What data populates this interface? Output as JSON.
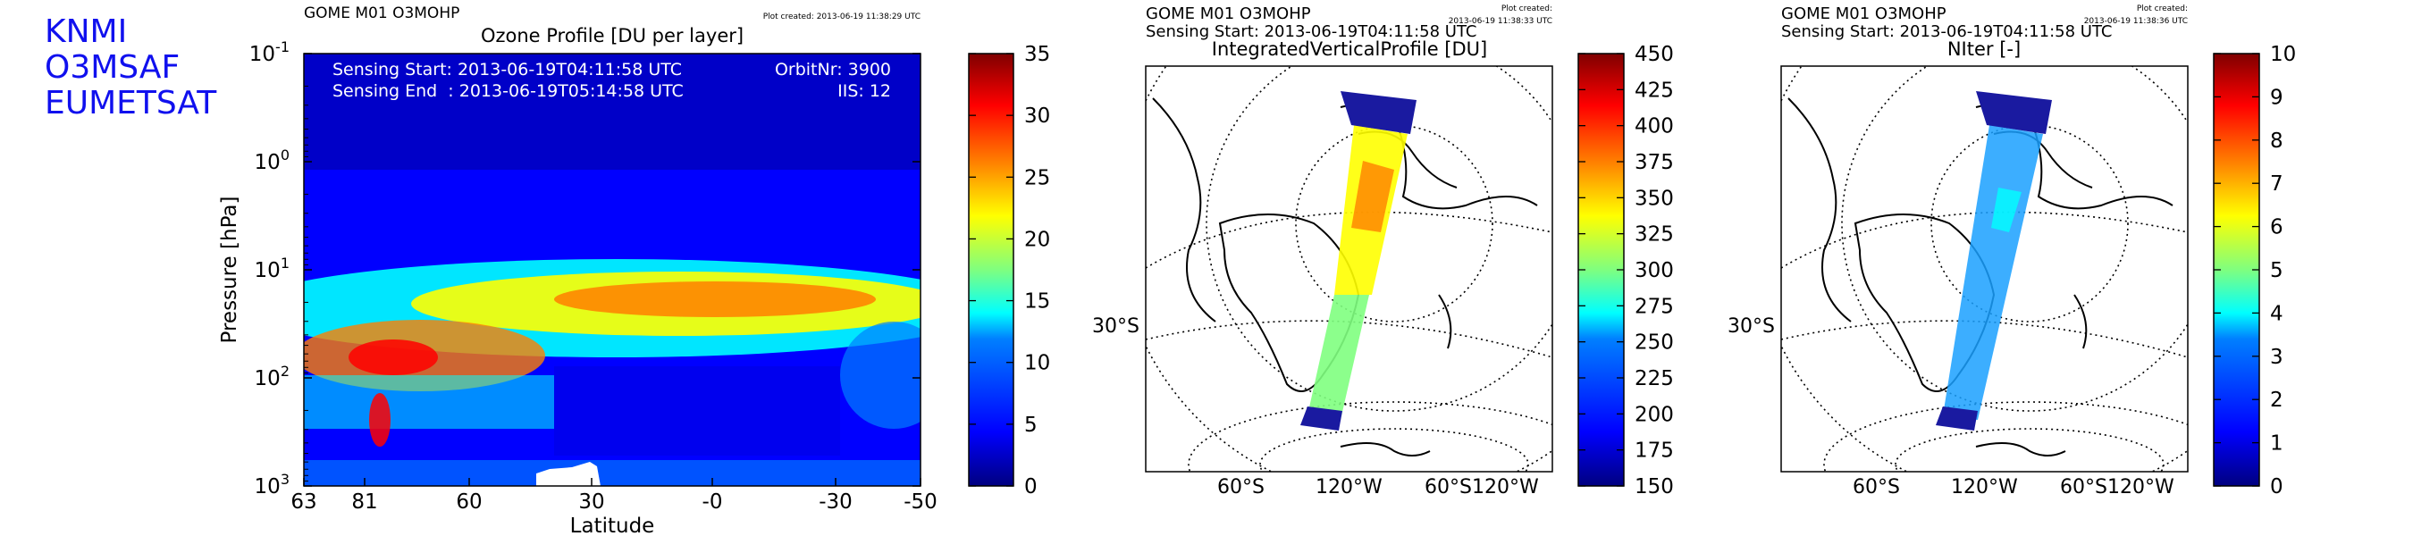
{
  "branding": [
    "KNMI",
    "O3MSAF",
    "EUMETSAT"
  ],
  "panels": [
    {
      "header": "GOME M01 O3MOHP",
      "plot_created": "Plot created: 2013-06-19 11:38:29 UTC",
      "info_left": [
        "Sensing Start: 2013-06-19T04:11:58 UTC",
        "Sensing End  : 2013-06-19T05:14:58 UTC"
      ],
      "info_right": [
        "OrbitNr: 3900",
        "IIS: 12"
      ]
    },
    {
      "header": "GOME M01 O3MOHP",
      "subheader": "Sensing Start: 2013-06-19T04:11:58 UTC",
      "plot_created": [
        "Plot created:",
        "2013-06-19 11:38:33 UTC"
      ]
    },
    {
      "header": "GOME M01 O3MOHP",
      "subheader": "Sensing Start: 2013-06-19T04:11:58 UTC",
      "plot_created": [
        "Plot created:",
        "2013-06-19 11:38:36 UTC"
      ]
    }
  ],
  "colors": {
    "jet": [
      "#00007f",
      "#0000ff",
      "#007fff",
      "#00ffff",
      "#7fff7f",
      "#ffff00",
      "#ff7f00",
      "#ff0000",
      "#7f0000"
    ],
    "brand": "#1010ee"
  },
  "chart_data": [
    {
      "type": "heatmap",
      "title": "Ozone Profile [DU per layer]",
      "xlabel": "Latitude",
      "ylabel": "Pressure [hPa]",
      "yscale": "log",
      "yaxis_inverted": true,
      "ylim": [
        1000,
        0.1
      ],
      "ytick_labels": [
        {
          "base": "10",
          "exp": "-1"
        },
        {
          "base": "10",
          "exp": "0"
        },
        {
          "base": "10",
          "exp": "1"
        },
        {
          "base": "10",
          "exp": "2"
        },
        {
          "base": "10",
          "exp": "3"
        }
      ],
      "xtick_labels": [
        "63",
        "81",
        "60",
        "30",
        "-0",
        "-30",
        "-50"
      ],
      "colorbar": {
        "min": 0,
        "max": 35,
        "tick_labels": [
          "0",
          "5",
          "10",
          "15",
          "20",
          "25",
          "30",
          "35"
        ]
      },
      "colormap": "jet"
    },
    {
      "type": "map",
      "projection": "orthographic",
      "title": "IntegratedVerticalProfile [DU]",
      "axis_labels": [
        "30°S",
        "60°S",
        "120°W",
        "60°S120°W"
      ],
      "colorbar": {
        "min": 150,
        "max": 450,
        "tick_labels": [
          "150",
          "175",
          "200",
          "225",
          "250",
          "275",
          "300",
          "325",
          "350",
          "375",
          "400",
          "425",
          "450"
        ]
      },
      "colormap": "jet"
    },
    {
      "type": "map",
      "projection": "orthographic",
      "title": "NIter [-]",
      "axis_labels": [
        "30°S",
        "60°S",
        "120°W",
        "60°S120°W"
      ],
      "colorbar": {
        "min": 0,
        "max": 10,
        "tick_labels": [
          "0",
          "1",
          "2",
          "3",
          "4",
          "5",
          "6",
          "7",
          "8",
          "9",
          "10"
        ]
      },
      "colormap": "jet"
    }
  ]
}
